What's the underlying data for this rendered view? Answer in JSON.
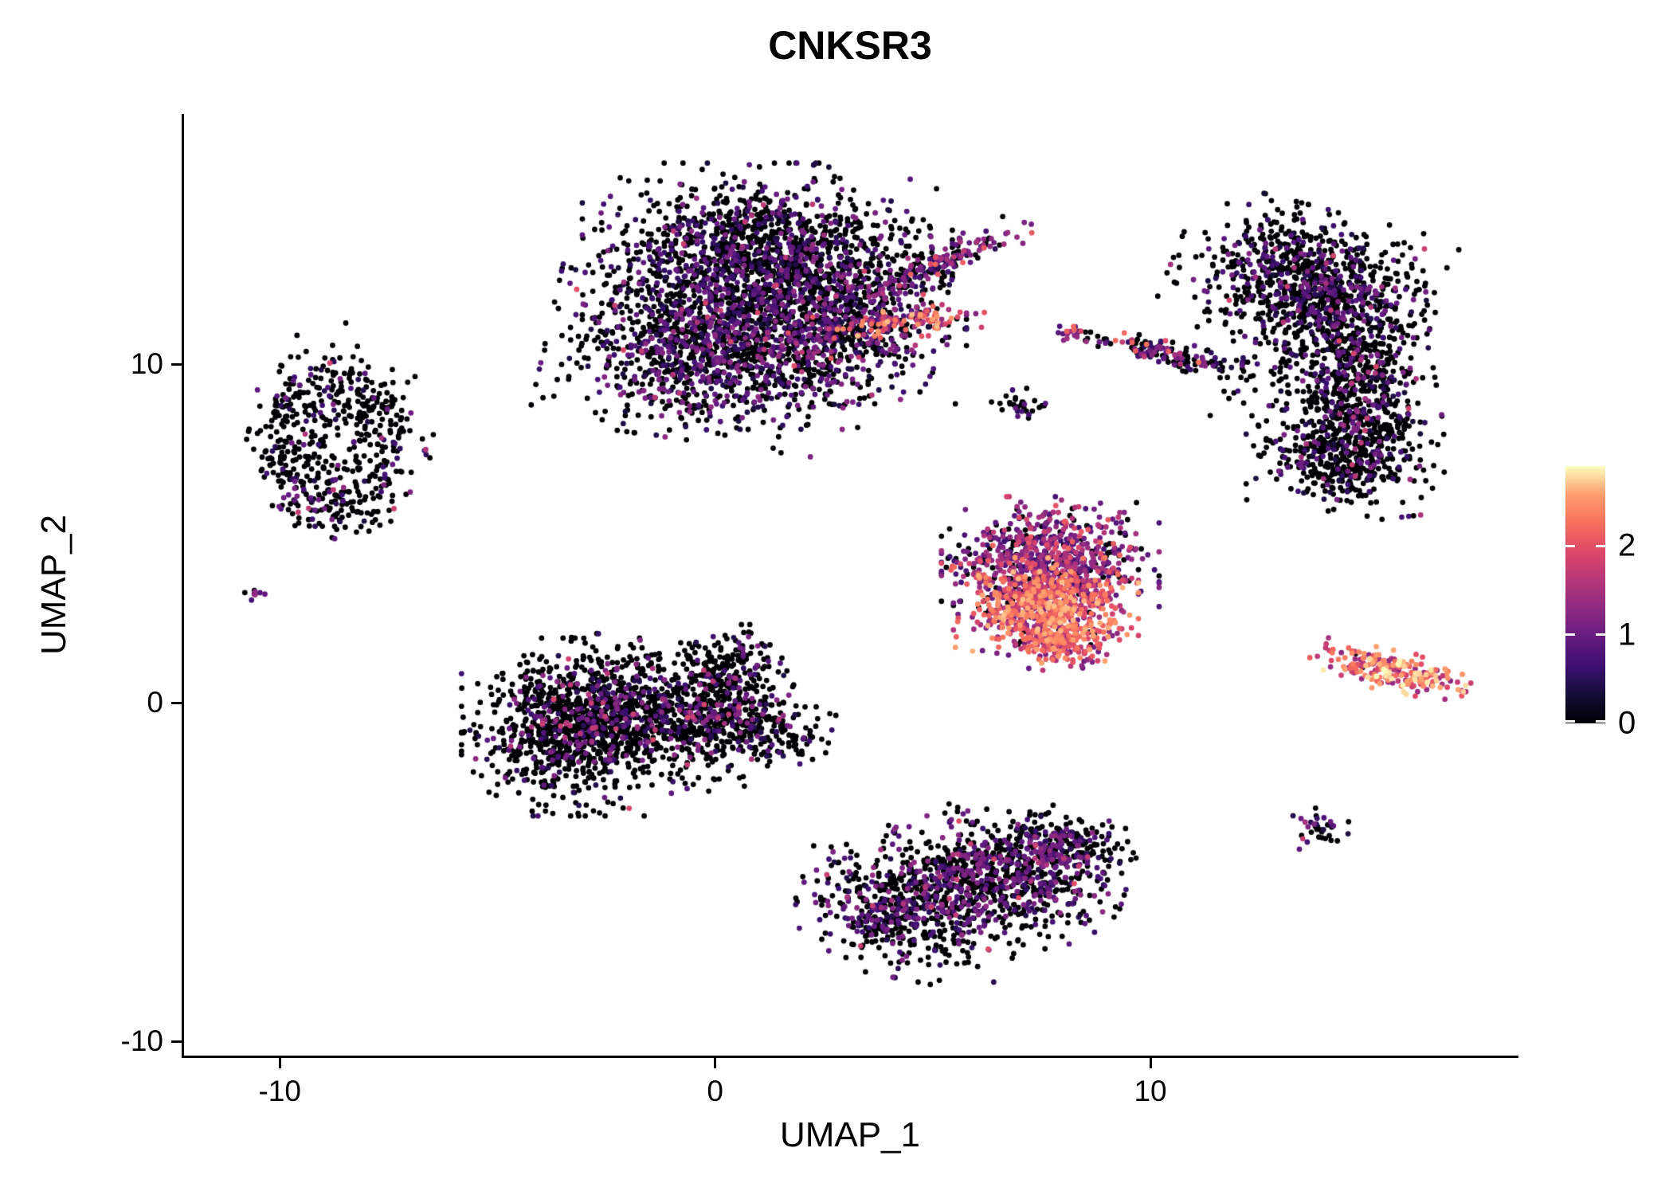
{
  "title": "CNKSR3",
  "axes": {
    "x": {
      "label": "UMAP_1",
      "domain": [
        -12.2,
        18.4
      ],
      "ticks": [
        {
          "value": -10,
          "label": "-10"
        },
        {
          "value": 0,
          "label": "0"
        },
        {
          "value": 10,
          "label": "10"
        }
      ]
    },
    "y": {
      "label": "UMAP_2",
      "domain": [
        -10.4,
        17.4
      ],
      "ticks": [
        {
          "value": -10,
          "label": "-10"
        },
        {
          "value": 0,
          "label": "0"
        },
        {
          "value": 10,
          "label": "10"
        }
      ]
    }
  },
  "legend": {
    "domain": [
      0,
      2.9
    ],
    "ticks": [
      {
        "value": 0,
        "label": "0"
      },
      {
        "value": 1,
        "label": "1"
      },
      {
        "value": 2,
        "label": "2"
      }
    ]
  },
  "colors": {
    "background": "#ffffff",
    "axis": "#000000",
    "text": "#000000"
  },
  "chart_data": {
    "type": "scatter",
    "subtype": "umap-feature-plot",
    "title": "CNKSR3",
    "xlabel": "UMAP_1",
    "ylabel": "UMAP_2",
    "xlim": [
      -12.2,
      18.4
    ],
    "ylim": [
      -10.4,
      17.4
    ],
    "grid": false,
    "legend_position": "right",
    "point_radius_px": 3.4,
    "seed": 7,
    "color_scale": {
      "type": "gradient",
      "name": "magma-like",
      "domain": [
        0,
        2.9
      ],
      "ticks": [
        0,
        1,
        2
      ],
      "stops": [
        [
          0.0,
          "#000004"
        ],
        [
          0.11,
          "#140e36"
        ],
        [
          0.22,
          "#3b0f70"
        ],
        [
          0.33,
          "#641a80"
        ],
        [
          0.44,
          "#8c2981"
        ],
        [
          0.56,
          "#b73779"
        ],
        [
          0.67,
          "#de4968"
        ],
        [
          0.78,
          "#f7705c"
        ],
        [
          0.89,
          "#fe9f6d"
        ],
        [
          1.0,
          "#fcfdbf"
        ]
      ]
    },
    "clusters": [
      {
        "name": "left-ring",
        "shape": "ring",
        "n": 560,
        "cx": -8.7,
        "cy": 7.7,
        "sx": 1.35,
        "sy": 1.9,
        "rot": 0,
        "jitter": 0.28,
        "expr": {
          "zero": 0.8,
          "mid": [
            0.4,
            1.2
          ],
          "bright": 0.02,
          "bright_range": [
            1.2,
            2.1
          ]
        }
      },
      {
        "name": "left-small-dot",
        "shape": "gauss",
        "n": 9,
        "cx": -10.6,
        "cy": 3.2,
        "sx": 0.13,
        "sy": 0.12,
        "rot": 0,
        "expr": {
          "zero": 0.3,
          "mid": [
            0.7,
            1.4
          ],
          "bright": 0.0,
          "bright_range": [
            0,
            0
          ]
        }
      },
      {
        "name": "top-main-a",
        "shape": "gauss",
        "n": 1250,
        "cx": -0.1,
        "cy": 10.6,
        "sx": 1.5,
        "sy": 1.15,
        "rot": -10,
        "expr": {
          "zero": 0.6,
          "mid": [
            0.3,
            1.3
          ],
          "bright": 0.02,
          "bright_range": [
            1.3,
            2.0
          ]
        }
      },
      {
        "name": "top-main-b",
        "shape": "gauss",
        "n": 1400,
        "cx": 1.2,
        "cy": 13.2,
        "sx": 1.7,
        "sy": 1.1,
        "rot": 0,
        "expr": {
          "zero": 0.68,
          "mid": [
            0.3,
            1.2
          ],
          "bright": 0.01,
          "bright_range": [
            1.2,
            1.9
          ]
        }
      },
      {
        "name": "top-main-c",
        "shape": "gauss",
        "n": 700,
        "cx": 2.9,
        "cy": 11.2,
        "sx": 1.15,
        "sy": 0.95,
        "rot": 0,
        "expr": {
          "zero": 0.55,
          "mid": [
            0.3,
            1.4
          ],
          "bright": 0.03,
          "bright_range": [
            1.4,
            2.1
          ]
        }
      },
      {
        "name": "top-arm",
        "shape": "gauss",
        "n": 170,
        "cx": 5.2,
        "cy": 13.0,
        "sx": 0.95,
        "sy": 0.22,
        "rot": 28,
        "expr": {
          "zero": 0.4,
          "mid": [
            0.5,
            1.5
          ],
          "bright": 0.08,
          "bright_range": [
            1.5,
            2.2
          ]
        }
      },
      {
        "name": "top-bright-streak",
        "shape": "gauss",
        "n": 95,
        "cx": 4.4,
        "cy": 11.3,
        "sx": 0.72,
        "sy": 0.2,
        "rot": 6,
        "expr": {
          "zero": 0.03,
          "mid": [
            1.1,
            1.8
          ],
          "bright": 0.62,
          "bright_range": [
            1.8,
            2.7
          ]
        }
      },
      {
        "name": "mini-dot-center",
        "shape": "gauss",
        "n": 18,
        "cx": 8.1,
        "cy": 10.9,
        "sx": 0.2,
        "sy": 0.17,
        "rot": 0,
        "expr": {
          "zero": 0.2,
          "mid": [
            0.7,
            1.5
          ],
          "bright": 0.25,
          "bright_range": [
            1.5,
            2.2
          ]
        }
      },
      {
        "name": "mid-strip",
        "shape": "gauss",
        "n": 140,
        "cx": 10.4,
        "cy": 10.3,
        "sx": 0.8,
        "sy": 0.15,
        "rot": -16,
        "expr": {
          "zero": 0.55,
          "mid": [
            0.4,
            1.3
          ],
          "bright": 0.08,
          "bright_range": [
            1.4,
            2.3
          ]
        }
      },
      {
        "name": "small-pair",
        "shape": "gauss",
        "n": 32,
        "cx": 7.0,
        "cy": 8.8,
        "sx": 0.26,
        "sy": 0.2,
        "rot": 0,
        "expr": {
          "zero": 0.72,
          "mid": [
            0.4,
            1.0
          ],
          "bright": 0.0,
          "bright_range": [
            0,
            0
          ]
        }
      },
      {
        "name": "right-top-a",
        "shape": "gauss",
        "n": 820,
        "cx": 13.6,
        "cy": 12.5,
        "sx": 1.25,
        "sy": 0.85,
        "rot": -18,
        "expr": {
          "zero": 0.72,
          "mid": [
            0.3,
            1.2
          ],
          "bright": 0.02,
          "bright_range": [
            1.2,
            1.9
          ]
        }
      },
      {
        "name": "right-band",
        "shape": "gauss",
        "n": 720,
        "cx": 14.8,
        "cy": 9.4,
        "sx": 0.7,
        "sy": 1.6,
        "rot": 8,
        "expr": {
          "zero": 0.72,
          "mid": [
            0.3,
            1.2
          ],
          "bright": 0.02,
          "bright_range": [
            1.2,
            1.9
          ]
        }
      },
      {
        "name": "right-lower",
        "shape": "gauss",
        "n": 320,
        "cx": 14.2,
        "cy": 7.3,
        "sx": 0.8,
        "sy": 0.65,
        "rot": 0,
        "expr": {
          "zero": 0.7,
          "mid": [
            0.3,
            1.2
          ],
          "bright": 0.02,
          "bright_range": [
            1.2,
            1.9
          ]
        }
      },
      {
        "name": "right-sparse",
        "shape": "gauss",
        "n": 160,
        "cx": 13.2,
        "cy": 10.3,
        "sx": 0.95,
        "sy": 1.15,
        "rot": 0,
        "expr": {
          "zero": 0.75,
          "mid": [
            0.3,
            1.1
          ],
          "bright": 0.01,
          "bright_range": [
            1.1,
            1.7
          ]
        }
      },
      {
        "name": "center-top-purple",
        "shape": "gauss",
        "n": 720,
        "cx": 7.7,
        "cy": 4.3,
        "sx": 1.0,
        "sy": 0.72,
        "rot": 0,
        "expr": {
          "zero": 0.18,
          "mid": [
            0.6,
            1.6
          ],
          "bright": 0.12,
          "bright_range": [
            1.6,
            2.2
          ]
        }
      },
      {
        "name": "center-bottom-orange",
        "shape": "gauss",
        "n": 700,
        "cx": 7.6,
        "cy": 2.8,
        "sx": 0.85,
        "sy": 0.6,
        "rot": 0,
        "expr": {
          "zero": 0.04,
          "mid": [
            1.0,
            1.8
          ],
          "bright": 0.65,
          "bright_range": [
            1.8,
            2.7
          ]
        }
      },
      {
        "name": "center-tip",
        "shape": "gauss",
        "n": 160,
        "cx": 7.9,
        "cy": 1.8,
        "sx": 0.45,
        "sy": 0.33,
        "rot": 0,
        "expr": {
          "zero": 0.04,
          "mid": [
            1.0,
            1.8
          ],
          "bright": 0.6,
          "bright_range": [
            1.8,
            2.6
          ]
        }
      },
      {
        "name": "right-bright-strip",
        "shape": "gauss",
        "n": 230,
        "cx": 15.4,
        "cy": 1.0,
        "sx": 0.8,
        "sy": 0.24,
        "rot": -14,
        "expr": {
          "zero": 0.02,
          "mid": [
            1.2,
            1.8
          ],
          "bright": 0.72,
          "bright_range": [
            1.8,
            2.9
          ]
        }
      },
      {
        "name": "leftcenter-a",
        "shape": "gauss",
        "n": 920,
        "cx": -3.2,
        "cy": -0.7,
        "sx": 1.05,
        "sy": 1.05,
        "rot": 0,
        "expr": {
          "zero": 0.82,
          "mid": [
            0.4,
            1.3
          ],
          "bright": 0.02,
          "bright_range": [
            1.3,
            1.9
          ]
        }
      },
      {
        "name": "leftcenter-b",
        "shape": "gauss",
        "n": 700,
        "cx": -1.2,
        "cy": -0.3,
        "sx": 1.25,
        "sy": 0.85,
        "rot": -8,
        "expr": {
          "zero": 0.82,
          "mid": [
            0.4,
            1.3
          ],
          "bright": 0.02,
          "bright_range": [
            1.3,
            1.9
          ]
        }
      },
      {
        "name": "leftcenter-tip",
        "shape": "gauss",
        "n": 300,
        "cx": 0.7,
        "cy": -0.5,
        "sx": 0.8,
        "sy": 0.5,
        "rot": -12,
        "expr": {
          "zero": 0.8,
          "mid": [
            0.4,
            1.3
          ],
          "bright": 0.02,
          "bright_range": [
            1.3,
            1.9
          ]
        }
      },
      {
        "name": "leftcenter-top",
        "shape": "gauss",
        "n": 130,
        "cx": 0.4,
        "cy": 1.2,
        "sx": 0.5,
        "sy": 0.45,
        "rot": 0,
        "expr": {
          "zero": 0.78,
          "mid": [
            0.4,
            1.2
          ],
          "bright": 0.02,
          "bright_range": [
            1.2,
            1.8
          ]
        }
      },
      {
        "name": "bottom-a",
        "shape": "gauss",
        "n": 620,
        "cx": 4.5,
        "cy": -6.0,
        "sx": 1.05,
        "sy": 0.85,
        "rot": -14,
        "expr": {
          "zero": 0.66,
          "mid": [
            0.4,
            1.3
          ],
          "bright": 0.02,
          "bright_range": [
            1.3,
            2.0
          ]
        }
      },
      {
        "name": "bottom-b",
        "shape": "gauss",
        "n": 620,
        "cx": 6.6,
        "cy": -5.0,
        "sx": 1.15,
        "sy": 0.78,
        "rot": -14,
        "expr": {
          "zero": 0.6,
          "mid": [
            0.4,
            1.3
          ],
          "bright": 0.03,
          "bright_range": [
            1.3,
            2.0
          ]
        }
      },
      {
        "name": "bottom-c",
        "shape": "gauss",
        "n": 260,
        "cx": 7.9,
        "cy": -4.3,
        "sx": 0.68,
        "sy": 0.5,
        "rot": -10,
        "expr": {
          "zero": 0.6,
          "mid": [
            0.4,
            1.3
          ],
          "bright": 0.03,
          "bright_range": [
            1.3,
            2.0
          ]
        }
      },
      {
        "name": "bottom-right-dot",
        "shape": "gauss",
        "n": 35,
        "cx": 13.9,
        "cy": -3.7,
        "sx": 0.28,
        "sy": 0.26,
        "rot": 0,
        "expr": {
          "zero": 0.55,
          "mid": [
            0.4,
            1.3
          ],
          "bright": 0.06,
          "bright_range": [
            1.4,
            2.1
          ]
        }
      }
    ]
  }
}
